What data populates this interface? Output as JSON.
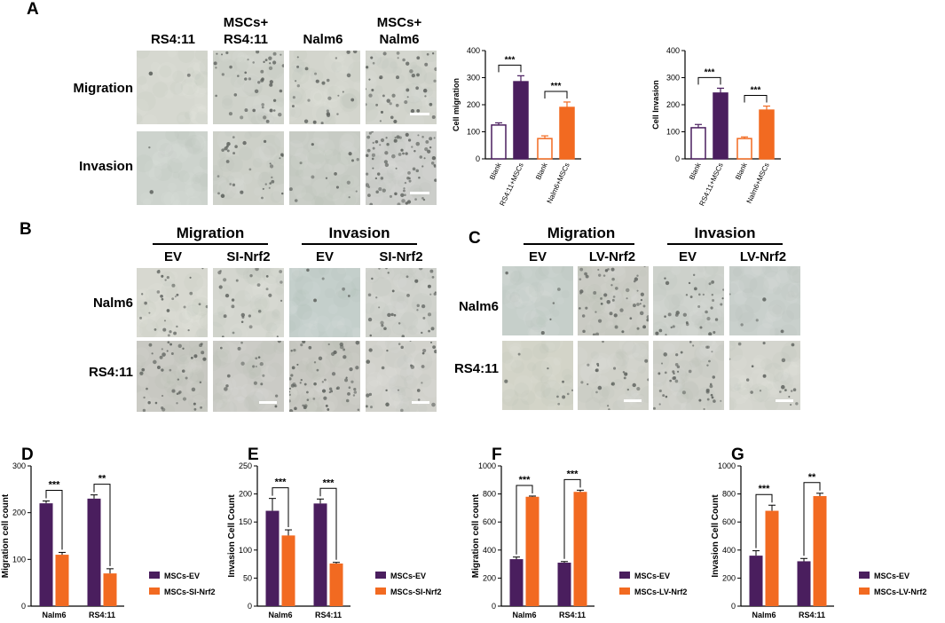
{
  "panelA": {
    "letter": "A",
    "columns": [
      "RS4:11",
      "MSCs+\nRS4:11",
      "Nalm6",
      "MSCs+\nNalm6"
    ],
    "rows": [
      "Migration",
      "Invasion"
    ],
    "micrographs": [
      {
        "tone": "#d6d8d0",
        "cells": 0.02
      },
      {
        "tone": "#cfd2ca",
        "cells": 0.5
      },
      {
        "tone": "#d3d5cd",
        "cells": 0.3
      },
      {
        "tone": "#d2d4cc",
        "cells": 0.5
      },
      {
        "tone": "#cdd3cd",
        "cells": 0.02
      },
      {
        "tone": "#cdd0c8",
        "cells": 0.35
      },
      {
        "tone": "#c7cbc4",
        "cells": 0.15
      },
      {
        "tone": "#ccceca",
        "cells": 0.9
      }
    ]
  },
  "panelB": {
    "letter": "B",
    "groups": [
      "Migration",
      "Invasion"
    ],
    "columns": [
      "EV",
      "SI-Nrf2",
      "EV",
      "SI-Nrf2"
    ],
    "rows": [
      "Nalm6",
      "RS4:11"
    ],
    "micrographs": [
      {
        "tone": "#d7d8d0",
        "cells": 0.35
      },
      {
        "tone": "#d4d6cf",
        "cells": 0.3
      },
      {
        "tone": "#c4cfcb",
        "cells": 0.05
      },
      {
        "tone": "#d0d2cc",
        "cells": 0.4
      },
      {
        "tone": "#c8c8c2",
        "cells": 0.5
      },
      {
        "tone": "#cbcbc6",
        "cells": 0.2
      },
      {
        "tone": "#c8c8c2",
        "cells": 0.7
      },
      {
        "tone": "#d2d2cc",
        "cells": 0.3
      }
    ]
  },
  "panelC": {
    "letter": "C",
    "groups": [
      "Migration",
      "Invasion"
    ],
    "columns": [
      "EV",
      "LV-Nrf2",
      "EV",
      "LV-Nrf2"
    ],
    "rows": [
      "Nalm6",
      "RS4:11"
    ],
    "micrographs": [
      {
        "tone": "#c6cfca",
        "cells": 0.05
      },
      {
        "tone": "#cacbc4",
        "cells": 0.6
      },
      {
        "tone": "#cdd1cb",
        "cells": 0.4
      },
      {
        "tone": "#c9d0cc",
        "cells": 0.05
      },
      {
        "tone": "#d3d4c8",
        "cells": 0.1
      },
      {
        "tone": "#d0d1c9",
        "cells": 0.25
      },
      {
        "tone": "#cfd0c9",
        "cells": 0.45
      },
      {
        "tone": "#d4d5ce",
        "cells": 0.2
      }
    ]
  },
  "chart_data": [
    {
      "id": "A-migration",
      "type": "bar",
      "categories": [
        "Blank",
        "RS4:11+MSCs",
        "Blank",
        "Nalm6+MSCs"
      ],
      "values": [
        125,
        285,
        75,
        190
      ],
      "errors": [
        8,
        22,
        10,
        20
      ],
      "fill": [
        "#ffffff",
        "#4a1e5e",
        "#ffffff",
        "#f26a21"
      ],
      "stroke": [
        "#4a1e5e",
        "#4a1e5e",
        "#f26a21",
        "#f26a21"
      ],
      "ylabel": "Cell migration",
      "ylim": [
        0,
        400
      ],
      "yticks": [
        0,
        100,
        200,
        300,
        400
      ],
      "significance": [
        {
          "from": 0,
          "to": 1,
          "label": "***"
        },
        {
          "from": 2,
          "to": 3,
          "label": "***"
        }
      ]
    },
    {
      "id": "A-invasion",
      "type": "bar",
      "categories": [
        "Blank",
        "RS4:11+MSCs",
        "Blank",
        "Nalm6+MSCs"
      ],
      "values": [
        115,
        243,
        75,
        180
      ],
      "errors": [
        12,
        18,
        6,
        15
      ],
      "fill": [
        "#ffffff",
        "#4a1e5e",
        "#ffffff",
        "#f26a21"
      ],
      "stroke": [
        "#4a1e5e",
        "#4a1e5e",
        "#f26a21",
        "#f26a21"
      ],
      "ylabel": "Cell Invasion",
      "ylim": [
        0,
        400
      ],
      "yticks": [
        0,
        100,
        200,
        300,
        400
      ],
      "significance": [
        {
          "from": 0,
          "to": 1,
          "label": "***"
        },
        {
          "from": 2,
          "to": 3,
          "label": "***"
        }
      ]
    },
    {
      "id": "D",
      "letter": "D",
      "type": "bar",
      "categories": [
        "Nalm6",
        "RS4:11"
      ],
      "series": [
        {
          "name": "MSCs-EV",
          "color": "#4a1e5e",
          "values": [
            220,
            230
          ],
          "errors": [
            5,
            8
          ]
        },
        {
          "name": "MSCs-SI-Nrf2",
          "color": "#f26a21",
          "values": [
            110,
            70
          ],
          "errors": [
            5,
            10
          ]
        }
      ],
      "ylabel": "Migration cell count",
      "ylim": [
        0,
        300
      ],
      "yticks": [
        0,
        100,
        200,
        300
      ],
      "significance": [
        "***",
        "**"
      ]
    },
    {
      "id": "E",
      "letter": "E",
      "type": "bar",
      "categories": [
        "Nalm6",
        "RS4:11"
      ],
      "series": [
        {
          "name": "MSCs-EV",
          "color": "#4a1e5e",
          "values": [
            170,
            183
          ],
          "errors": [
            22,
            8
          ]
        },
        {
          "name": "MSCs-SI-Nrf2",
          "color": "#f26a21",
          "values": [
            126,
            76
          ],
          "errors": [
            10,
            2
          ]
        }
      ],
      "ylabel": "Invasion Cell Count",
      "ylim": [
        0,
        250
      ],
      "yticks": [
        0,
        50,
        100,
        150,
        200,
        250
      ],
      "significance": [
        "***",
        "***"
      ]
    },
    {
      "id": "F",
      "letter": "F",
      "type": "bar",
      "categories": [
        "Nalm6",
        "RS4:11"
      ],
      "series": [
        {
          "name": "MSCs-EV",
          "color": "#4a1e5e",
          "values": [
            335,
            310
          ],
          "errors": [
            15,
            8
          ]
        },
        {
          "name": "MSCs-LV-Nrf2",
          "color": "#f26a21",
          "values": [
            780,
            815
          ],
          "errors": [
            5,
            12
          ]
        }
      ],
      "ylabel": "Migration cell count",
      "ylim": [
        0,
        1000
      ],
      "yticks": [
        0,
        200,
        400,
        600,
        800,
        1000
      ],
      "significance": [
        "***",
        "***"
      ]
    },
    {
      "id": "G",
      "letter": "G",
      "type": "bar",
      "categories": [
        "Nalm6",
        "RS4:11"
      ],
      "series": [
        {
          "name": "MSCs-EV",
          "color": "#4a1e5e",
          "values": [
            360,
            320
          ],
          "errors": [
            35,
            20
          ]
        },
        {
          "name": "MSCs-LV-Nrf2",
          "color": "#f26a21",
          "values": [
            680,
            785
          ],
          "errors": [
            40,
            20
          ]
        }
      ],
      "ylabel": "Invasion Cell Count",
      "ylim": [
        0,
        1000
      ],
      "yticks": [
        0,
        200,
        400,
        600,
        800,
        1000
      ],
      "significance": [
        "***",
        "**"
      ]
    }
  ]
}
